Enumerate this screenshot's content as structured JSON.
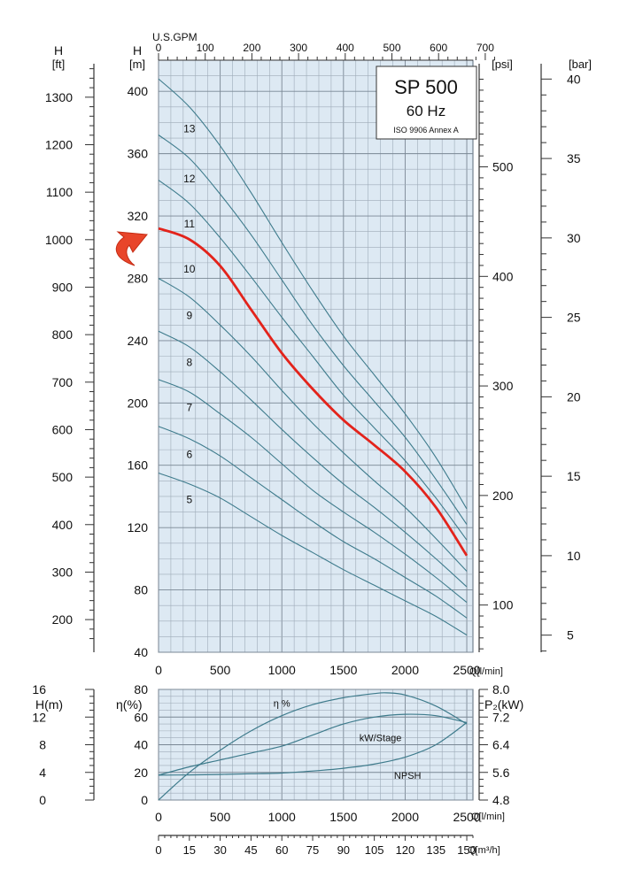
{
  "chart_data": [
    {
      "type": "line",
      "title": "SP 500",
      "subtitle": "60 Hz",
      "note": "ISO 9906 Annex A",
      "xlabel": "Q[l/min]",
      "ylabel_left_m": "H [m]",
      "ylabel_ft": "H [ft]",
      "ylabel_psi": "[psi]",
      "ylabel_bar": "[bar]",
      "top_axis_label": "U.S.GPM",
      "xlim": [
        0,
        2550
      ],
      "ylim": [
        40,
        420
      ],
      "x_ticks": [
        0,
        500,
        1000,
        1500,
        2000,
        2500
      ],
      "y_ticks_m": [
        40,
        80,
        120,
        160,
        200,
        240,
        280,
        320,
        360,
        400
      ],
      "ft_ticks": [
        200,
        300,
        400,
        500,
        600,
        700,
        800,
        900,
        1000,
        1100,
        1200,
        1300
      ],
      "psi_ticks": [
        100,
        200,
        300,
        400,
        500
      ],
      "bar_ticks": [
        5,
        10,
        15,
        20,
        25,
        30,
        35,
        40
      ],
      "gpm_ticks": [
        0,
        100,
        200,
        300,
        400,
        500,
        600,
        700
      ],
      "highlight_series": "10",
      "series": [
        {
          "name": "13",
          "x": [
            0,
            250,
            500,
            750,
            1000,
            1250,
            1500,
            1750,
            2000,
            2250,
            2500
          ],
          "values": [
            408,
            390,
            365,
            335,
            303,
            272,
            243,
            218,
            193,
            165,
            132
          ]
        },
        {
          "name": "12",
          "x": [
            0,
            250,
            500,
            750,
            1000,
            1250,
            1500,
            1750,
            2000,
            2250,
            2500
          ],
          "values": [
            372,
            357,
            334,
            308,
            279,
            250,
            224,
            201,
            178,
            151,
            122
          ]
        },
        {
          "name": "11",
          "x": [
            0,
            250,
            500,
            750,
            1000,
            1250,
            1500,
            1750,
            2000,
            2250,
            2500
          ],
          "values": [
            343,
            328,
            306,
            281,
            255,
            230,
            205,
            184,
            163,
            139,
            112
          ]
        },
        {
          "name": "10",
          "x": [
            0,
            250,
            500,
            750,
            1000,
            1250,
            1500,
            1750,
            2000,
            2250,
            2500
          ],
          "values": [
            312,
            305,
            288,
            260,
            232,
            209,
            189,
            173,
            156,
            133,
            102
          ]
        },
        {
          "name": "9",
          "x": [
            0,
            250,
            500,
            750,
            1000,
            1250,
            1500,
            1750,
            2000,
            2250,
            2500
          ],
          "values": [
            280,
            268,
            250,
            230,
            208,
            187,
            168,
            150,
            133,
            113,
            92
          ]
        },
        {
          "name": "8",
          "x": [
            0,
            250,
            500,
            750,
            1000,
            1250,
            1500,
            1750,
            2000,
            2250,
            2500
          ],
          "values": [
            246,
            236,
            220,
            202,
            183,
            165,
            148,
            133,
            117,
            100,
            82
          ]
        },
        {
          "name": "7",
          "x": [
            0,
            250,
            500,
            750,
            1000,
            1250,
            1500,
            1750,
            2000,
            2250,
            2500
          ],
          "values": [
            215,
            207,
            193,
            178,
            161,
            144,
            130,
            117,
            103,
            88,
            72
          ]
        },
        {
          "name": "6",
          "x": [
            0,
            250,
            500,
            750,
            1000,
            1250,
            1500,
            1750,
            2000,
            2250,
            2500
          ],
          "values": [
            185,
            177,
            166,
            152,
            138,
            124,
            111,
            100,
            88,
            76,
            62
          ]
        },
        {
          "name": "5",
          "x": [
            0,
            250,
            500,
            750,
            1000,
            1250,
            1500,
            1750,
            2000,
            2250,
            2500
          ],
          "values": [
            155,
            148,
            139,
            127,
            115,
            104,
            93,
            83,
            73,
            63,
            51
          ]
        }
      ]
    },
    {
      "type": "line",
      "xlabel": "Q[l/min]",
      "ylabel_eta": "η(%)",
      "ylabel_h": "H(m)",
      "ylabel_p2": "P₂(kW)",
      "xlim": [
        0,
        2550
      ],
      "ylim": [
        0,
        80
      ],
      "x_ticks": [
        0,
        500,
        1000,
        1500,
        2000,
        2500
      ],
      "eta_ticks": [
        0,
        20,
        40,
        60,
        80
      ],
      "h_ticks": [
        0,
        4,
        8,
        12,
        16
      ],
      "p2_ticks": [
        "4.8",
        "5.6",
        "6.4",
        "7.2",
        "8.0"
      ],
      "series": [
        {
          "name": "η %",
          "x": [
            0,
            250,
            500,
            750,
            1000,
            1250,
            1500,
            1750,
            1850,
            2000,
            2250,
            2500
          ],
          "values": [
            0,
            20,
            36,
            50,
            61,
            69,
            74,
            77,
            77.5,
            76,
            68,
            55
          ]
        },
        {
          "name": "kW/Stage",
          "x": [
            0,
            250,
            500,
            750,
            1000,
            1250,
            1500,
            1750,
            2000,
            2250,
            2500
          ],
          "values": [
            18,
            24,
            29,
            34,
            39,
            47,
            55,
            60,
            62,
            61,
            56
          ]
        },
        {
          "name": "NPSH",
          "x": [
            0,
            250,
            500,
            750,
            1000,
            1250,
            1500,
            1750,
            2000,
            2250,
            2500
          ],
          "values": [
            18,
            18.2,
            18.5,
            19,
            19.5,
            21,
            23,
            26,
            31,
            40,
            56
          ]
        }
      ]
    },
    {
      "type": "axis",
      "xlabel": "Q[m³/h]",
      "ticks": [
        0,
        15,
        30,
        45,
        60,
        75,
        90,
        105,
        120,
        135,
        150
      ]
    }
  ]
}
